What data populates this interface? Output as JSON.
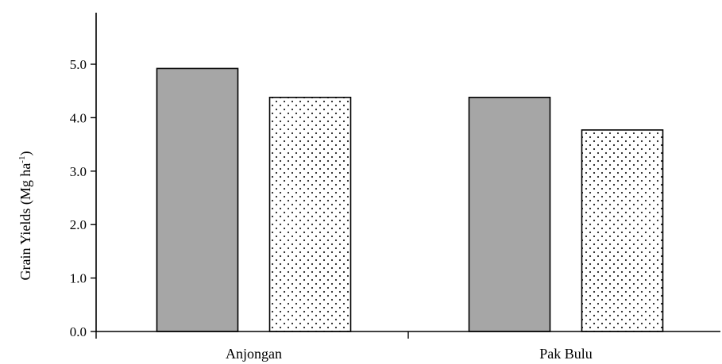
{
  "chart_data": {
    "type": "bar",
    "categories": [
      "Anjongan",
      "Pak Bulu"
    ],
    "series": [
      {
        "values": [
          4.92,
          4.38
        ],
        "fill": "#a6a6a6",
        "pattern": "solid"
      },
      {
        "values": [
          4.38,
          3.77
        ],
        "fill": "#ffffff",
        "pattern": "dots"
      }
    ],
    "ylabel": "Grain Yields (Mg ha",
    "ylabel_superscript": "-1",
    "ylabel_suffix": ")",
    "xlabel": "",
    "ylim": [
      0,
      5.0
    ],
    "yticks": [
      "0.0",
      "1.0",
      "2.0",
      "3.0",
      "4.0",
      "5.0"
    ],
    "grid": false,
    "colors": {
      "axis": "#000000",
      "bar_stroke": "#000000",
      "dot": "#222222"
    }
  }
}
